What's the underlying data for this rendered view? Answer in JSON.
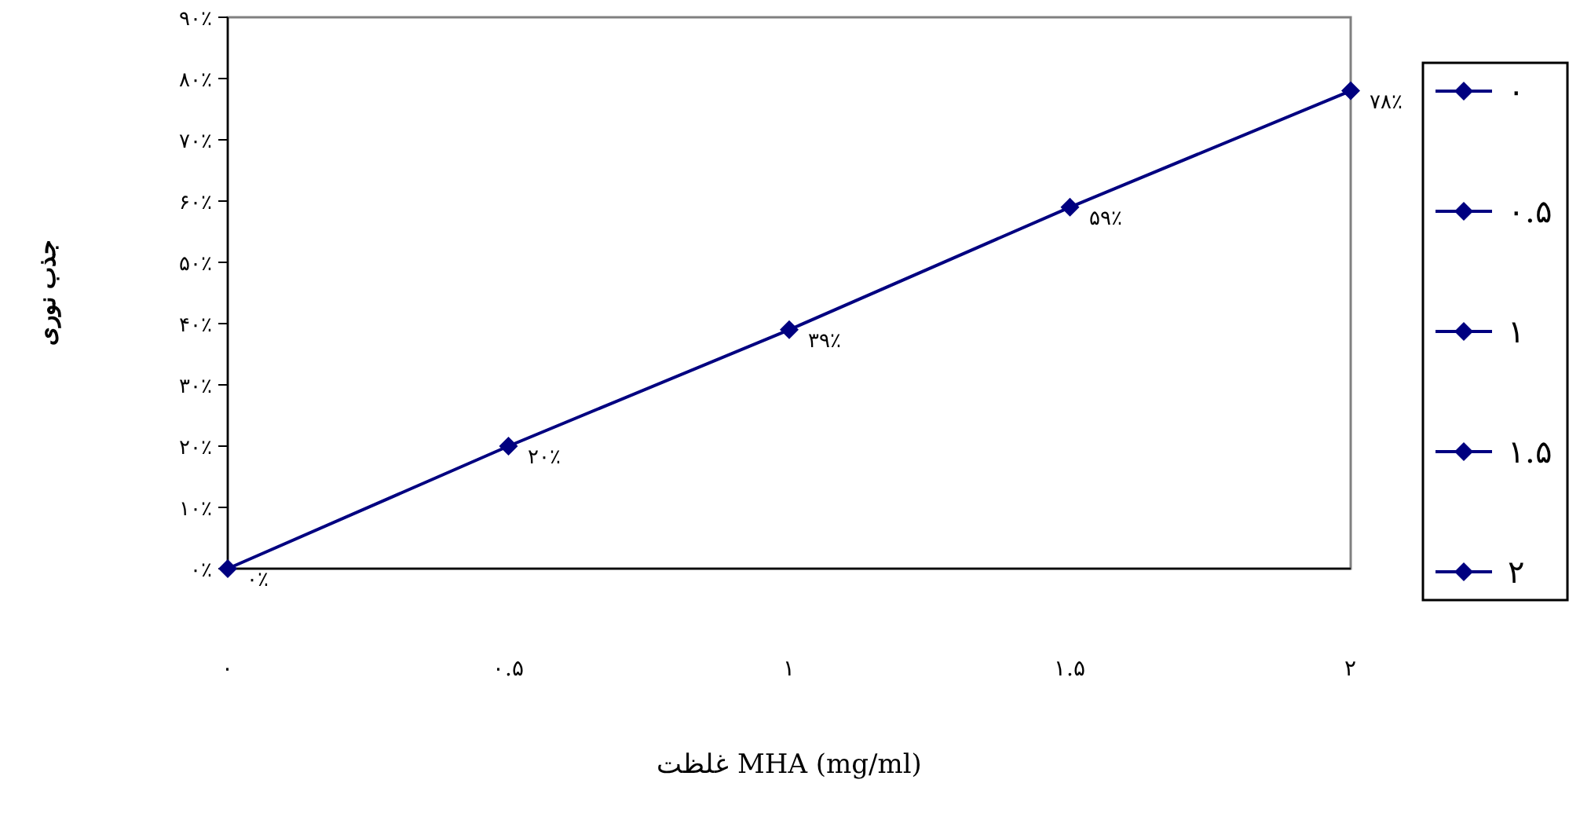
{
  "chart_data": {
    "type": "line",
    "xlabel": "غلظت MHA (mg/ml)",
    "ylabel": "جذب نوری",
    "categories": [
      "۰",
      "۰.۵",
      "۱",
      "۱.۵",
      "۲"
    ],
    "series": [
      {
        "color": "#000080",
        "values": [
          0,
          20,
          39,
          59,
          78
        ],
        "value_labels": [
          "۰٪",
          "۲۰٪",
          "۳۹٪",
          "۵۹٪",
          "۷۸٪"
        ]
      }
    ],
    "ylim": [
      0,
      90
    ],
    "yticks": [
      {
        "value": 0,
        "label": "۰٪"
      },
      {
        "value": 10,
        "label": "۱۰٪"
      },
      {
        "value": 20,
        "label": "۲۰٪"
      },
      {
        "value": 30,
        "label": "۳۰٪"
      },
      {
        "value": 40,
        "label": "۴۰٪"
      },
      {
        "value": 50,
        "label": "۵۰٪"
      },
      {
        "value": 60,
        "label": "۶۰٪"
      },
      {
        "value": 70,
        "label": "۷۰٪"
      },
      {
        "value": 80,
        "label": "۸۰٪"
      },
      {
        "value": 90,
        "label": "۹۰٪"
      }
    ],
    "grid": false,
    "marker": "diamond",
    "line_style": "solid"
  }
}
